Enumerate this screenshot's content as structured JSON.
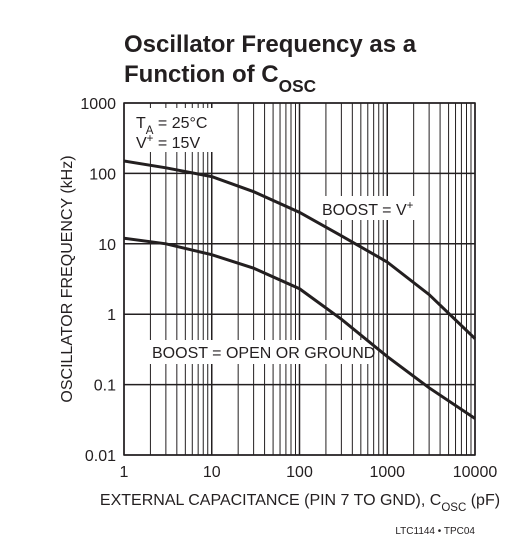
{
  "chart_data": {
    "type": "line",
    "title": [
      [
        {
          "text": "Oscillator Frequency as a"
        }
      ],
      [
        {
          "text": "Function of C"
        },
        {
          "text": "OSC",
          "sub": true
        }
      ]
    ],
    "xlabel": [
      {
        "text": "EXTERNAL CAPACITANCE (PIN 7 TO GND), C"
      },
      {
        "text": "OSC",
        "sub": true
      },
      {
        "text": " (pF)"
      }
    ],
    "ylabel": "OSCILLATOR FREQUENCY (kHz)",
    "annotations": [
      [
        {
          "text": "T"
        },
        {
          "text": "A",
          "sub": true
        },
        {
          "text": " = 25°C"
        }
      ],
      [
        {
          "text": "V"
        },
        {
          "text": "+",
          "sup": true
        },
        {
          "text": " = 15V"
        }
      ]
    ],
    "note": "LTC1144 • TPC04",
    "xlog": true,
    "ylog": true,
    "grid": true,
    "xlim": [
      1,
      10000
    ],
    "ylim": [
      0.01,
      1000
    ],
    "xticks": [
      1,
      10,
      100,
      1000,
      10000
    ],
    "yticks": [
      0.01,
      0.1,
      1,
      10,
      100,
      1000
    ],
    "xminor": [
      2,
      3,
      4,
      5,
      6,
      7,
      8,
      9,
      20,
      30,
      40,
      50,
      60,
      70,
      80,
      90,
      200,
      300,
      400,
      500,
      600,
      700,
      800,
      900,
      2000,
      3000,
      4000,
      5000,
      6000,
      7000,
      8000,
      9000
    ],
    "x": [
      1,
      3,
      10,
      30,
      100,
      300,
      1000,
      3000,
      10000
    ],
    "series": [
      {
        "name": [
          {
            "text": "BOOST = V"
          },
          {
            "text": "+",
            "sup": true
          }
        ],
        "color": "#231f20",
        "values": [
          150,
          120,
          90,
          55,
          28,
          13,
          5.5,
          1.9,
          0.45
        ]
      },
      {
        "name": [
          {
            "text": "BOOST = OPEN OR GROUND"
          }
        ],
        "color": "#231f20",
        "values": [
          12,
          10,
          7,
          4.5,
          2.3,
          0.85,
          0.25,
          0.09,
          0.033
        ]
      }
    ]
  }
}
